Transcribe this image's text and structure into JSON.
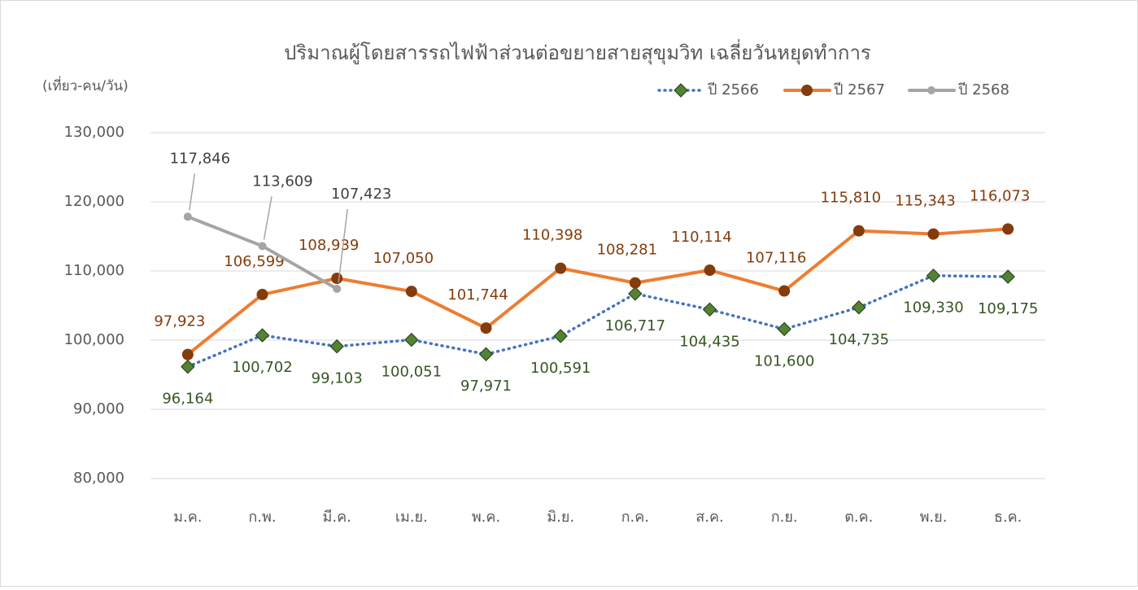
{
  "chart_data": {
    "type": "line",
    "title": "ปริมาณผู้โดยสารรถไฟฟ้าส่วนต่อขยายสายสุขุมวิท เฉลี่ยวันหยุดทำการ",
    "y_axis_label": "(เที่ยว-คน/วัน)",
    "categories": [
      "ม.ค.",
      "ก.พ.",
      "มี.ค.",
      "เม.ย.",
      "พ.ค.",
      "มิ.ย.",
      "ก.ค.",
      "ส.ค.",
      "ก.ย.",
      "ต.ค.",
      "พ.ย.",
      "ธ.ค."
    ],
    "series": [
      {
        "name": "ปี 2566",
        "color": "#4472c4",
        "dash": "dotted",
        "marker": "diamond",
        "marker_color": "#548235",
        "label_color": "#375623",
        "values": [
          96164,
          100702,
          99103,
          100051,
          97971,
          100591,
          106717,
          104435,
          101600,
          104735,
          109330,
          109175
        ],
        "value_labels": [
          "96,164",
          "100,702",
          "99,103",
          "100,051",
          "97,971",
          "100,591",
          "106,717",
          "104,435",
          "101,600",
          "104,735",
          "109,330",
          "109,175"
        ]
      },
      {
        "name": "ปี 2567",
        "color": "#ed7d31",
        "dash": "solid",
        "marker": "circle",
        "marker_color": "#843c0c",
        "label_color": "#843c0c",
        "values": [
          97923,
          106599,
          108939,
          107050,
          101744,
          110398,
          108281,
          110114,
          107116,
          115810,
          115343,
          116073
        ],
        "value_labels": [
          "97,923",
          "106,599",
          "108,939",
          "107,050",
          "101,744",
          "110,398",
          "108,281",
          "110,114",
          "107,116",
          "115,810",
          "115,343",
          "116,073"
        ]
      },
      {
        "name": "ปี 2568",
        "color": "#a5a5a5",
        "dash": "solid",
        "marker": "circle",
        "marker_color": "#a5a5a5",
        "label_color": "#404040",
        "values": [
          117846,
          113609,
          107423,
          null,
          null,
          null,
          null,
          null,
          null,
          null,
          null,
          null
        ],
        "value_labels": [
          "117,846",
          "113,609",
          "107,423",
          null,
          null,
          null,
          null,
          null,
          null,
          null,
          null,
          null
        ]
      }
    ],
    "ylim": [
      80000,
      130000
    ],
    "yticks": [
      {
        "value": 80000,
        "label": "80,000"
      },
      {
        "value": 90000,
        "label": "90,000"
      },
      {
        "value": 100000,
        "label": "100,000"
      },
      {
        "value": 110000,
        "label": "110,000"
      },
      {
        "value": 120000,
        "label": "120,000"
      },
      {
        "value": 130000,
        "label": "130,000"
      }
    ],
    "grid": true,
    "legend": "top-right"
  }
}
